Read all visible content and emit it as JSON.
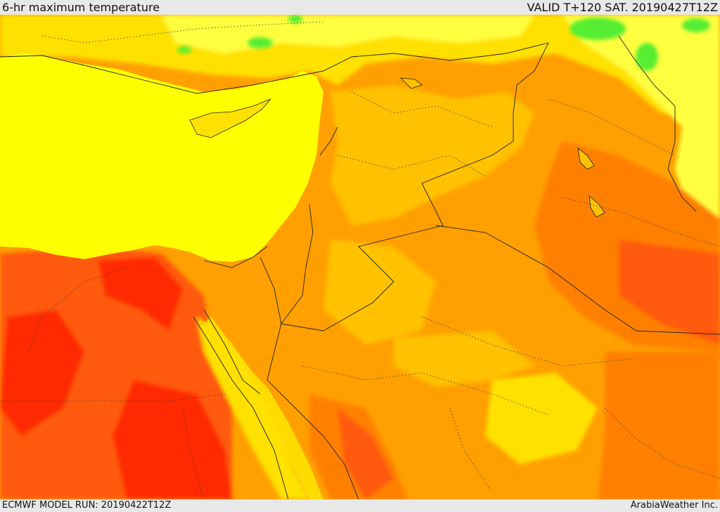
{
  "header": {
    "title": "6-hr maximum temperature",
    "valid_time": "VALID T+120 SAT. 20190427T12Z"
  },
  "footer": {
    "model_run": "ECMWF MODEL RUN: 20190422T12Z",
    "credit": "ArabiaWeather Inc."
  },
  "map": {
    "region": "Eastern Mediterranean and Middle East",
    "variable": "6-hr maximum temperature",
    "colors": {
      "sea": "#ffff00",
      "yellow_light": "#ffff40",
      "green": "#55ee33",
      "yellow_orange": "#ffe100",
      "orange_light": "#ffc100",
      "orange": "#ffa000",
      "orange_dark": "#ff8000",
      "red_orange": "#ff5a0d",
      "red": "#ff2a00"
    }
  }
}
